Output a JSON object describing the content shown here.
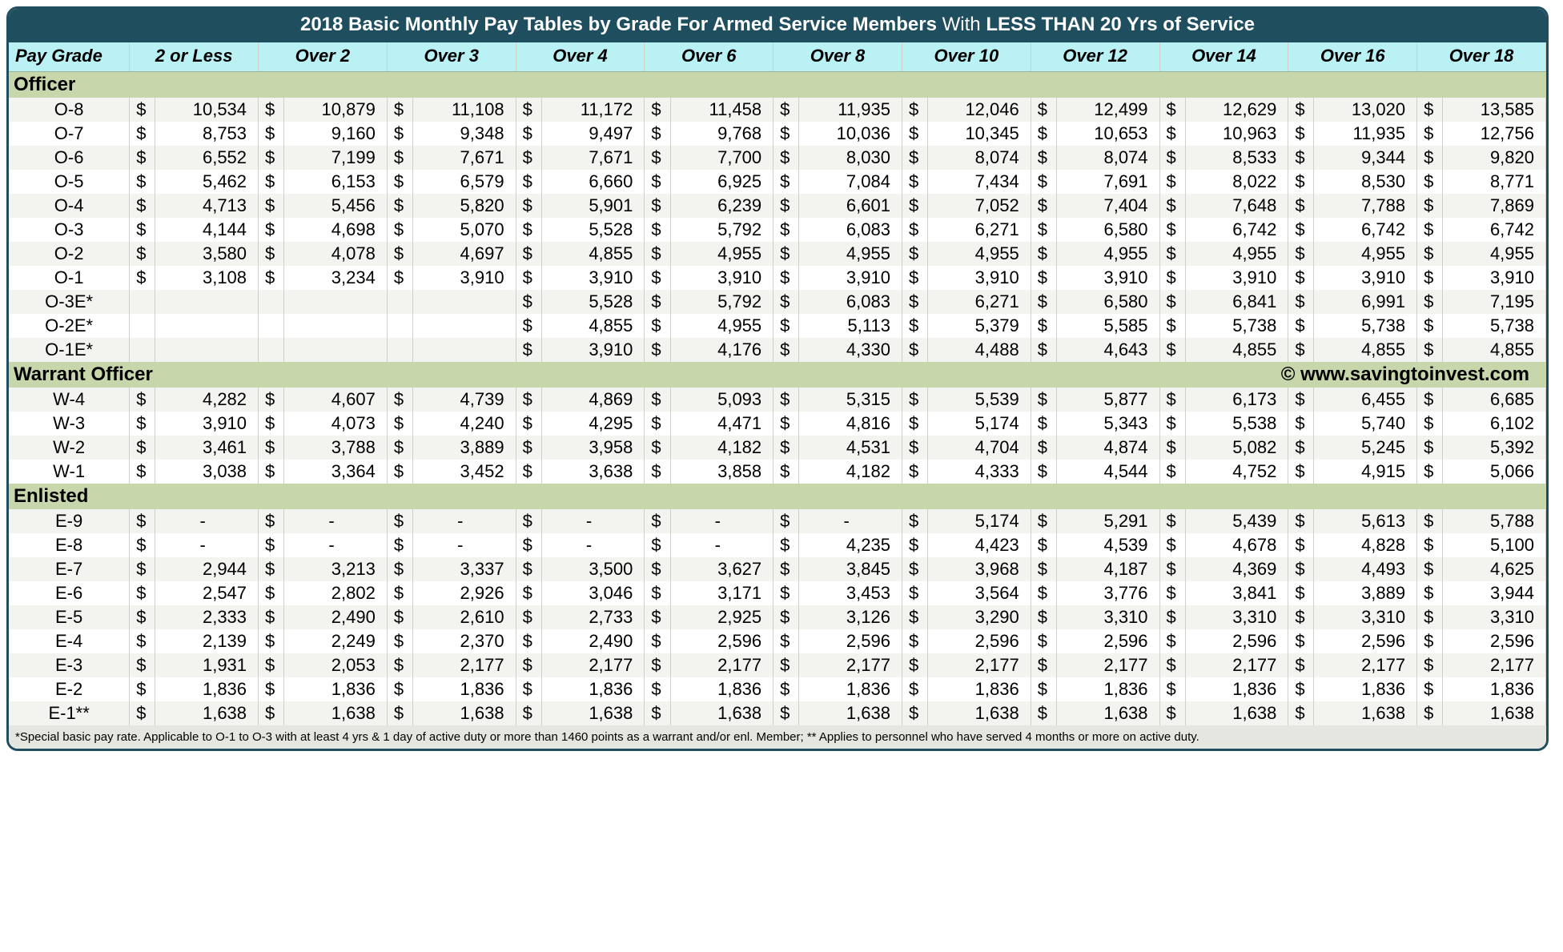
{
  "title_strong1": "2018 Basic Monthly Pay Tables by Grade For Armed Service Members",
  "title_thin": " With ",
  "title_strong2": "LESS THAN 20 Yrs of Service",
  "columns": [
    "Pay Grade",
    "2 or Less",
    "Over 2",
    "Over 3",
    "Over 4",
    "Over 6",
    "Over 8",
    "Over 10",
    "Over 12",
    "Over 14",
    "Over 16",
    "Over 18"
  ],
  "sections": [
    {
      "name": "Officer",
      "rows": [
        {
          "grade": "O-8",
          "vals": [
            "10,534",
            "10,879",
            "11,108",
            "11,172",
            "11,458",
            "11,935",
            "12,046",
            "12,499",
            "12,629",
            "13,020",
            "13,585"
          ]
        },
        {
          "grade": "O-7",
          "vals": [
            "8,753",
            "9,160",
            "9,348",
            "9,497",
            "9,768",
            "10,036",
            "10,345",
            "10,653",
            "10,963",
            "11,935",
            "12,756"
          ]
        },
        {
          "grade": "O-6",
          "vals": [
            "6,552",
            "7,199",
            "7,671",
            "7,671",
            "7,700",
            "8,030",
            "8,074",
            "8,074",
            "8,533",
            "9,344",
            "9,820"
          ]
        },
        {
          "grade": "O-5",
          "vals": [
            "5,462",
            "6,153",
            "6,579",
            "6,660",
            "6,925",
            "7,084",
            "7,434",
            "7,691",
            "8,022",
            "8,530",
            "8,771"
          ]
        },
        {
          "grade": "O-4",
          "vals": [
            "4,713",
            "5,456",
            "5,820",
            "5,901",
            "6,239",
            "6,601",
            "7,052",
            "7,404",
            "7,648",
            "7,788",
            "7,869"
          ]
        },
        {
          "grade": "O-3",
          "vals": [
            "4,144",
            "4,698",
            "5,070",
            "5,528",
            "5,792",
            "6,083",
            "6,271",
            "6,580",
            "6,742",
            "6,742",
            "6,742"
          ]
        },
        {
          "grade": "O-2",
          "vals": [
            "3,580",
            "4,078",
            "4,697",
            "4,855",
            "4,955",
            "4,955",
            "4,955",
            "4,955",
            "4,955",
            "4,955",
            "4,955"
          ]
        },
        {
          "grade": "O-1",
          "vals": [
            "3,108",
            "3,234",
            "3,910",
            "3,910",
            "3,910",
            "3,910",
            "3,910",
            "3,910",
            "3,910",
            "3,910",
            "3,910"
          ]
        },
        {
          "grade": "O-3E*",
          "vals": [
            "",
            "",
            "",
            "5,528",
            "5,792",
            "6,083",
            "6,271",
            "6,580",
            "6,841",
            "6,991",
            "7,195"
          ]
        },
        {
          "grade": "O-2E*",
          "vals": [
            "",
            "",
            "",
            "4,855",
            "4,955",
            "5,113",
            "5,379",
            "5,585",
            "5,738",
            "5,738",
            "5,738"
          ]
        },
        {
          "grade": "O-1E*",
          "vals": [
            "",
            "",
            "",
            "3,910",
            "4,176",
            "4,330",
            "4,488",
            "4,643",
            "4,855",
            "4,855",
            "4,855"
          ]
        }
      ]
    },
    {
      "name": "Warrant Officer",
      "copyright": "© www.savingtoinvest.com",
      "rows": [
        {
          "grade": "W-4",
          "vals": [
            "4,282",
            "4,607",
            "4,739",
            "4,869",
            "5,093",
            "5,315",
            "5,539",
            "5,877",
            "6,173",
            "6,455",
            "6,685"
          ]
        },
        {
          "grade": "W-3",
          "vals": [
            "3,910",
            "4,073",
            "4,240",
            "4,295",
            "4,471",
            "4,816",
            "5,174",
            "5,343",
            "5,538",
            "5,740",
            "6,102"
          ]
        },
        {
          "grade": "W-2",
          "vals": [
            "3,461",
            "3,788",
            "3,889",
            "3,958",
            "4,182",
            "4,531",
            "4,704",
            "4,874",
            "5,082",
            "5,245",
            "5,392"
          ]
        },
        {
          "grade": "W-1",
          "vals": [
            "3,038",
            "3,364",
            "3,452",
            "3,638",
            "3,858",
            "4,182",
            "4,333",
            "4,544",
            "4,752",
            "4,915",
            "5,066"
          ]
        }
      ]
    },
    {
      "name": " Enlisted",
      "rows": [
        {
          "grade": "E-9",
          "vals": [
            "-",
            "-",
            "-",
            "-",
            "-",
            "-",
            "5,174",
            "5,291",
            "5,439",
            "5,613",
            "5,788"
          ]
        },
        {
          "grade": "E-8",
          "vals": [
            "-",
            "-",
            "-",
            "-",
            "-",
            "4,235",
            "4,423",
            "4,539",
            "4,678",
            "4,828",
            "5,100"
          ]
        },
        {
          "grade": "E-7",
          "vals": [
            "2,944",
            "3,213",
            "3,337",
            "3,500",
            "3,627",
            "3,845",
            "3,968",
            "4,187",
            "4,369",
            "4,493",
            "4,625"
          ]
        },
        {
          "grade": "E-6",
          "vals": [
            "2,547",
            "2,802",
            "2,926",
            "3,046",
            "3,171",
            "3,453",
            "3,564",
            "3,776",
            "3,841",
            "3,889",
            "3,944"
          ]
        },
        {
          "grade": "E-5",
          "vals": [
            "2,333",
            "2,490",
            "2,610",
            "2,733",
            "2,925",
            "3,126",
            "3,290",
            "3,310",
            "3,310",
            "3,310",
            "3,310"
          ]
        },
        {
          "grade": "E-4",
          "vals": [
            "2,139",
            "2,249",
            "2,370",
            "2,490",
            "2,596",
            "2,596",
            "2,596",
            "2,596",
            "2,596",
            "2,596",
            "2,596"
          ]
        },
        {
          "grade": "E-3",
          "vals": [
            "1,931",
            "2,053",
            "2,177",
            "2,177",
            "2,177",
            "2,177",
            "2,177",
            "2,177",
            "2,177",
            "2,177",
            "2,177"
          ]
        },
        {
          "grade": "E-2",
          "vals": [
            "1,836",
            "1,836",
            "1,836",
            "1,836",
            "1,836",
            "1,836",
            "1,836",
            "1,836",
            "1,836",
            "1,836",
            "1,836"
          ]
        },
        {
          "grade": "E-1**",
          "vals": [
            "1,638",
            "1,638",
            "1,638",
            "1,638",
            "1,638",
            "1,638",
            "1,638",
            "1,638",
            "1,638",
            "1,638",
            "1,638"
          ]
        }
      ]
    }
  ],
  "footnote": "*Special basic pay rate. Applicable to O-1 to O-3 with at least 4 yrs & 1 day of active duty or more than 1460 points as a warrant and/or enl. Member; ** Applies to personnel who have served 4 months or more on active duty.",
  "colors": {
    "border": "#1f4e5f",
    "header_bg": "#baf1f4",
    "section_bg": "#c7d6ab",
    "row_odd": "#f3f3ef",
    "row_even": "#ffffff",
    "footnote_bg": "#e6e6e0"
  }
}
